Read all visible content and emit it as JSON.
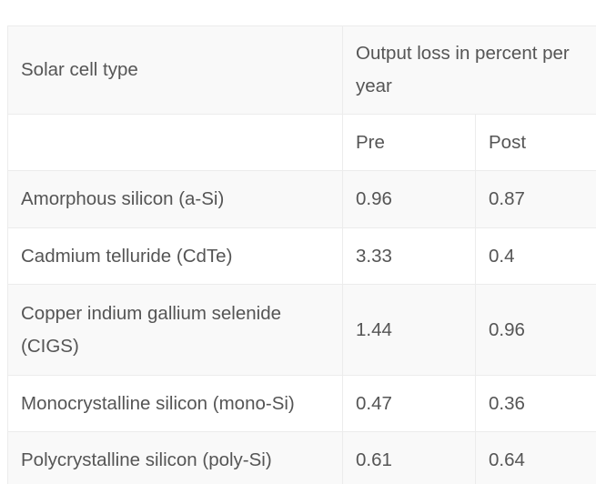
{
  "table": {
    "header": {
      "type_label": "Solar cell type",
      "loss_label": "Output loss in percent per year"
    },
    "subheader": [
      "Pre",
      "Post"
    ],
    "rows": [
      [
        "Amorphous silicon (a-Si)",
        "0.96",
        "0.87"
      ],
      [
        "Cadmium telluride (CdTe)",
        "3.33",
        "0.4"
      ],
      [
        "Copper indium gallium selenide (CIGS)",
        "1.44",
        "0.96"
      ],
      [
        "Monocrystalline silicon (mono-Si)",
        "0.47",
        "0.36"
      ],
      [
        "Polycrystalline silicon (poly-Si)",
        "0.61",
        "0.64"
      ]
    ]
  }
}
